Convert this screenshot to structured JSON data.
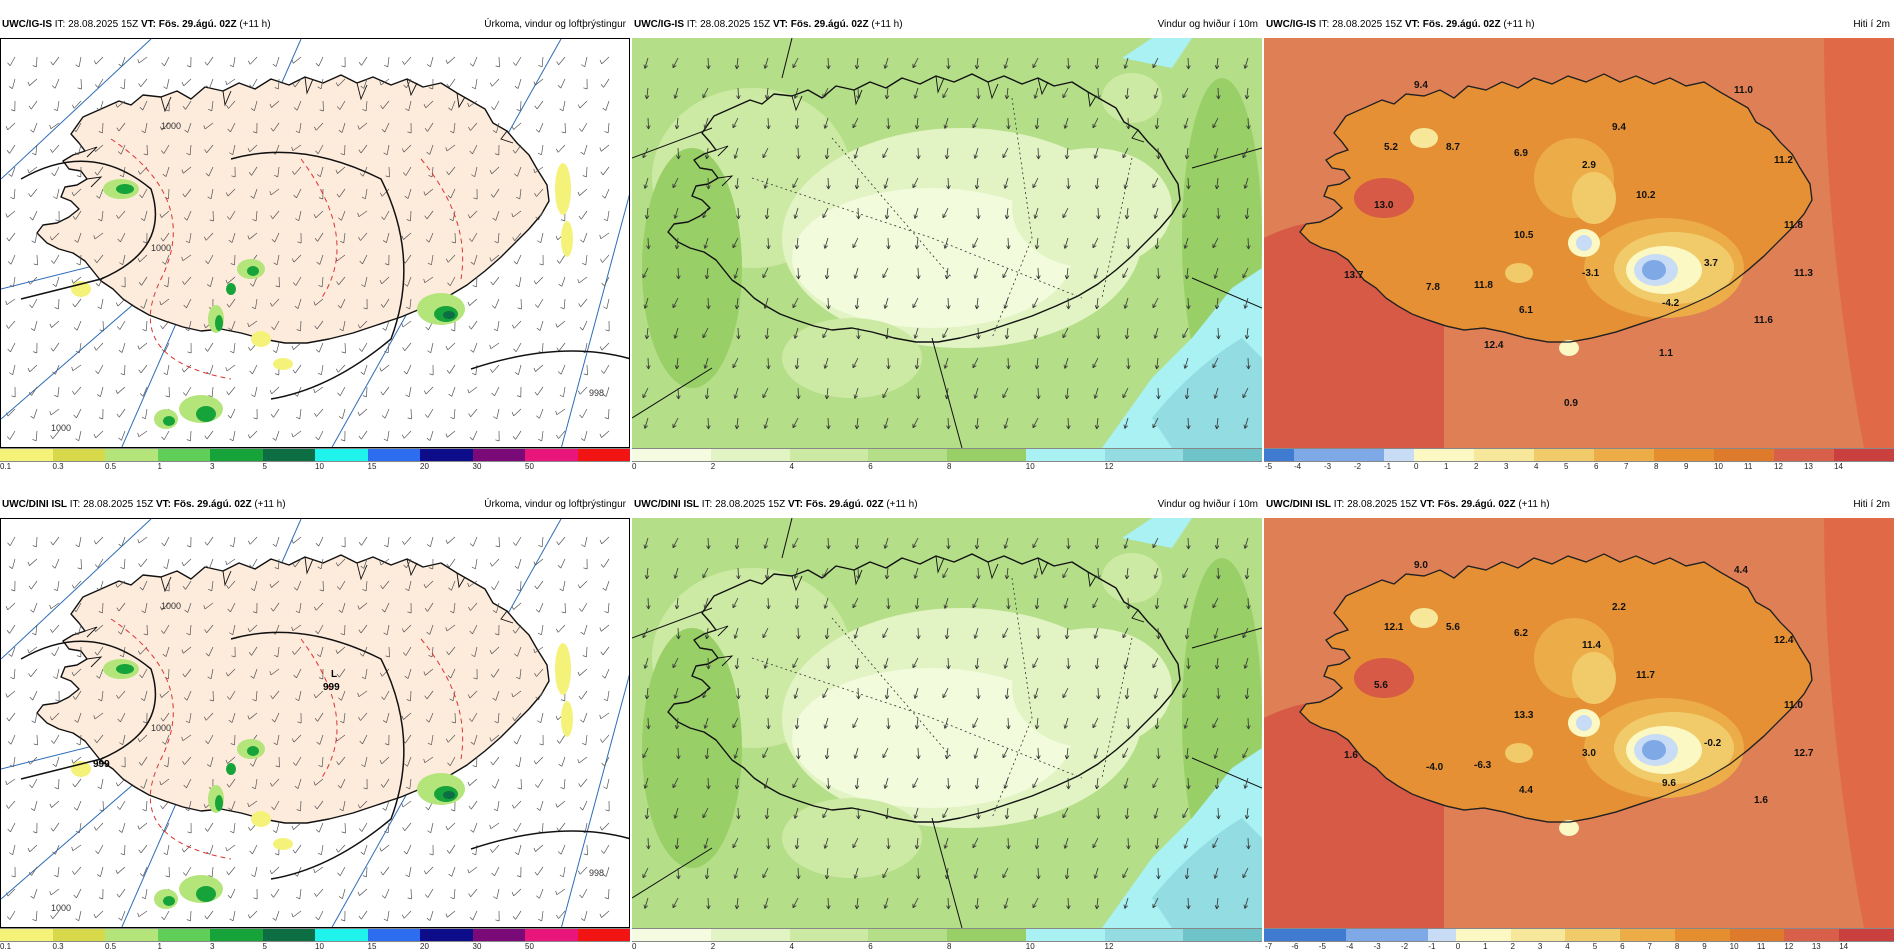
{
  "panels": [
    {
      "id": "p1",
      "model": "UWC/IG-IS",
      "it": "IT: 28.08.2025 15Z",
      "vt_label": "VT:",
      "vt": "Fös. 29.ágú. 02Z",
      "lead": "(+11 h)",
      "title_right": "Úrkoma, vindur og loftþrýstingur",
      "type": "precip",
      "colorbar": [
        "0.1",
        "0.3",
        "0.5",
        "1",
        "3",
        "5",
        "10",
        "15",
        "20",
        "30",
        "50"
      ],
      "colors": [
        "#f5f27a",
        "#d7d94a",
        "#b4e57a",
        "#5fcf5a",
        "#16a33a",
        "#0d6e44",
        "#1ef3ec",
        "#2d6df0",
        "#0d0d8c",
        "#7a0a78",
        "#e8157a",
        "#f21313"
      ],
      "isobar_labels": [
        "1000",
        "1000",
        "998",
        "1000"
      ],
      "pressure_center": ""
    },
    {
      "id": "p2",
      "model": "UWC/IG-IS",
      "it": "IT: 28.08.2025 15Z",
      "vt_label": "VT:",
      "vt": "Fös. 29.ágú. 02Z",
      "lead": "(+11 h)",
      "title_right": "Vindur og hviður í 10m",
      "type": "wind",
      "colorbar": [
        "0",
        "2",
        "4",
        "6",
        "8",
        "10",
        "12"
      ],
      "colors": [
        "#f5fbe1",
        "#e2f3c4",
        "#cdeaa5",
        "#b4de88",
        "#98cf66",
        "#a9f1f2",
        "#92dce2",
        "#6ec4c8"
      ]
    },
    {
      "id": "p3",
      "model": "UWC/IG-IS",
      "it": "IT: 28.08.2025 15Z",
      "vt_label": "VT:",
      "vt": "Fös. 29.ágú. 02Z",
      "lead": "(+11 h)",
      "title_right": "Hiti í 2m",
      "type": "temp",
      "colorbar": [
        "-5",
        "-4",
        "-3",
        "-2",
        "-1",
        "0",
        "1",
        "2",
        "3",
        "4",
        "5",
        "6",
        "7",
        "8",
        "9",
        "10",
        "11",
        "12",
        "13",
        "14"
      ],
      "temps": [
        "9.4",
        "11.0",
        "5.2",
        "8.7",
        "6.9",
        "9.4",
        "11.2",
        "13.0",
        "2.9",
        "10.2",
        "11.8",
        "10.5",
        "13.7",
        "7.8",
        "11.8",
        "-3.1",
        "3.7",
        "11.3",
        "6.1",
        "-4.2",
        "11.6",
        "12.4",
        "1.1",
        "0.9"
      ]
    },
    {
      "id": "p4",
      "model": "UWC/DINI ISL",
      "it": "IT: 28.08.2025 15Z",
      "vt_label": "VT:",
      "vt": "Fös. 29.ágú. 02Z",
      "lead": "(+11 h)",
      "title_right": "Úrkoma, vindur og loftþrýstingur",
      "type": "precip",
      "colorbar": [
        "0.1",
        "0.3",
        "0.5",
        "1",
        "3",
        "5",
        "10",
        "15",
        "20",
        "30",
        "50"
      ],
      "colors": [
        "#f5f27a",
        "#d7d94a",
        "#b4e57a",
        "#5fcf5a",
        "#16a33a",
        "#0d6e44",
        "#1ef3ec",
        "#2d6df0",
        "#0d0d8c",
        "#7a0a78",
        "#e8157a",
        "#f21313"
      ],
      "isobar_labels": [
        "1000",
        "1000",
        "998",
        "1000"
      ],
      "pressure_center": "999",
      "pressure_center2": "999",
      "low_symbol": "L"
    },
    {
      "id": "p5",
      "model": "UWC/DINI ISL",
      "it": "IT: 28.08.2025 15Z",
      "vt_label": "VT:",
      "vt": "Fös. 29.ágú. 02Z",
      "lead": "(+11 h)",
      "title_right": "Vindur og hviður í 10m",
      "type": "wind",
      "colorbar": [
        "0",
        "2",
        "4",
        "6",
        "8",
        "10",
        "12"
      ],
      "colors": [
        "#f5fbe1",
        "#e2f3c4",
        "#cdeaa5",
        "#b4de88",
        "#98cf66",
        "#a9f1f2",
        "#92dce2",
        "#6ec4c8"
      ]
    },
    {
      "id": "p6",
      "model": "UWC/DINI ISL",
      "it": "IT: 28.08.2025 15Z",
      "vt_label": "VT:",
      "vt": "Fös. 29.ágú. 02Z",
      "lead": "(+11 h)",
      "title_right": "Hiti í 2m",
      "type": "temp",
      "colorbar": [
        "-7",
        "-6",
        "-5",
        "-4",
        "-3",
        "-2",
        "-1",
        "0",
        "1",
        "2",
        "3",
        "4",
        "5",
        "6",
        "7",
        "8",
        "9",
        "10",
        "11",
        "12",
        "13",
        "14"
      ],
      "temps": [
        "9.0",
        "4.4",
        "12.1",
        "5.6",
        "6.2",
        "2.2",
        "12.4",
        "5.6",
        "11.4",
        "11.7",
        "11.0",
        "13.3",
        "1.6",
        "-4.0",
        "-6.3",
        "3.0",
        "-0.2",
        "12.7",
        "4.4",
        "9.6",
        "1.6"
      ]
    }
  ]
}
